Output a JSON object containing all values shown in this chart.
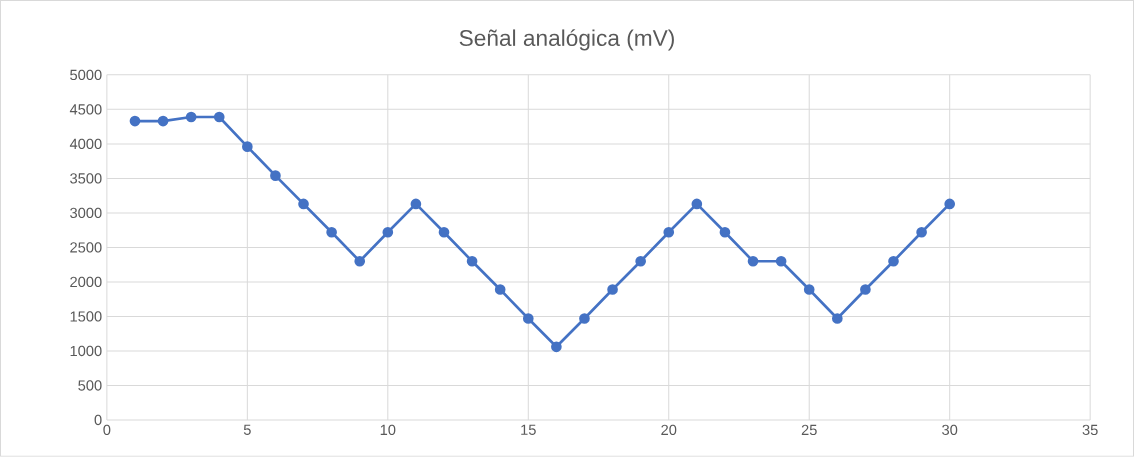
{
  "chart_data": {
    "type": "line",
    "title": "Señal analógica (mV)",
    "x": [
      1,
      2,
      3,
      4,
      5,
      6,
      7,
      8,
      9,
      10,
      11,
      12,
      13,
      14,
      15,
      16,
      17,
      18,
      19,
      20,
      21,
      22,
      23,
      24,
      25,
      26,
      27,
      28,
      29,
      30
    ],
    "series": [
      {
        "color": "#4472c4",
        "values": [
          4330,
          4330,
          4390,
          4390,
          3960,
          3540,
          3130,
          2720,
          2300,
          2720,
          3130,
          2720,
          2300,
          1890,
          1470,
          1060,
          1470,
          1890,
          2300,
          2720,
          3130,
          2720,
          2300,
          2300,
          1890,
          1470,
          1890,
          2300,
          2720,
          3130
        ]
      }
    ],
    "xlim": [
      0,
      35
    ],
    "xticks": [
      0,
      5,
      10,
      15,
      20,
      25,
      30,
      35
    ],
    "ylim": [
      0,
      5000
    ],
    "yticks": [
      0,
      500,
      1000,
      1500,
      2000,
      2500,
      3000,
      3500,
      4000,
      4500,
      5000
    ],
    "grid": true,
    "marker": "circle",
    "line_style": "solid"
  }
}
